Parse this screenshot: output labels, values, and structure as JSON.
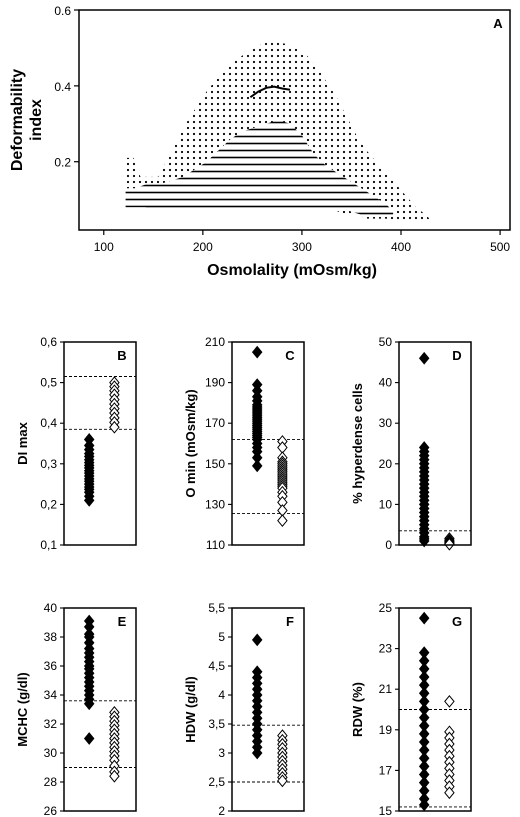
{
  "chart_data": [
    {
      "panel": "A",
      "type": "area",
      "xlabel": "Osmolality (mOsm/kg)",
      "ylabel_lines": [
        "Deformability",
        "index"
      ],
      "xlim": [
        75,
        510
      ],
      "ylim": [
        0.02,
        0.6
      ],
      "xticks": [
        100,
        200,
        300,
        400,
        500
      ],
      "yticks": [
        0.2,
        0.4,
        0.6
      ],
      "series": [
        {
          "style": "dotted",
          "x": [
            122,
            130,
            137,
            145,
            155,
            165,
            175,
            185,
            195,
            205,
            215,
            225,
            235,
            245,
            255,
            265,
            275,
            285,
            295,
            305,
            315,
            325,
            335,
            345,
            355,
            365,
            375,
            385,
            395,
            405,
            415,
            425,
            432
          ],
          "upper": [
            0.21,
            0.21,
            0.16,
            0.16,
            0.16,
            0.21,
            0.26,
            0.31,
            0.35,
            0.39,
            0.42,
            0.45,
            0.47,
            0.49,
            0.505,
            0.515,
            0.515,
            0.51,
            0.5,
            0.48,
            0.45,
            0.41,
            0.37,
            0.32,
            0.27,
            0.23,
            0.2,
            0.17,
            0.14,
            0.11,
            0.08,
            0.06,
            0.04
          ],
          "lower": [
            0.08,
            0.08,
            0.08,
            0.08,
            0.08,
            0.08,
            0.08,
            0.08,
            0.08,
            0.08,
            0.08,
            0.08,
            0.08,
            0.08,
            0.08,
            0.08,
            0.08,
            0.08,
            0.08,
            0.08,
            0.08,
            0.07,
            0.07,
            0.06,
            0.06,
            0.05,
            0.05,
            0.05,
            0.04,
            0.04,
            0.04,
            0.04,
            0.04
          ]
        },
        {
          "style": "hatched",
          "x": [
            122,
            132,
            142,
            155,
            168,
            180,
            192,
            204,
            216,
            228,
            240,
            252,
            264,
            276,
            288,
            300,
            312,
            324,
            336,
            348,
            360,
            372,
            384,
            392
          ],
          "upper": [
            0.13,
            0.13,
            0.14,
            0.14,
            0.15,
            0.16,
            0.18,
            0.2,
            0.23,
            0.26,
            0.28,
            0.29,
            0.3,
            0.31,
            0.3,
            0.27,
            0.22,
            0.19,
            0.17,
            0.15,
            0.13,
            0.11,
            0.09,
            0.07
          ],
          "lower": [
            0.08,
            0.08,
            0.08,
            0.07,
            0.07,
            0.07,
            0.07,
            0.07,
            0.07,
            0.07,
            0.07,
            0.07,
            0.07,
            0.07,
            0.07,
            0.07,
            0.07,
            0.07,
            0.07,
            0.07,
            0.06,
            0.06,
            0.06,
            0.06
          ]
        },
        {
          "style": "line",
          "x": [
            248,
            256,
            264,
            272,
            280,
            288
          ],
          "y": [
            0.37,
            0.385,
            0.395,
            0.398,
            0.393,
            0.39
          ]
        }
      ]
    },
    {
      "panel": "B",
      "type": "scatter",
      "ylabel": "DI max",
      "ylim": [
        0.1,
        0.6
      ],
      "yticks": [
        0.1,
        0.2,
        0.3,
        0.4,
        0.5,
        0.6
      ],
      "ytick_labels": [
        "0,1",
        "0,2",
        "0,3",
        "0,4",
        "0,5",
        "0,6"
      ],
      "reference_lines": [
        0.385,
        0.515
      ],
      "series": [
        {
          "marker": "filled-diamond",
          "values": [
            0.36,
            0.345,
            0.335,
            0.325,
            0.318,
            0.31,
            0.303,
            0.296,
            0.29,
            0.283,
            0.277,
            0.27,
            0.263,
            0.257,
            0.25,
            0.243,
            0.237,
            0.23,
            0.22,
            0.21
          ]
        },
        {
          "marker": "open-diamond",
          "values": [
            0.5,
            0.49,
            0.48,
            0.47,
            0.458,
            0.447,
            0.436,
            0.425,
            0.413,
            0.402,
            0.39
          ]
        }
      ]
    },
    {
      "panel": "C",
      "type": "scatter",
      "ylabel": "O min (mOsm/kg)",
      "ylim": [
        110,
        210
      ],
      "yticks": [
        110,
        130,
        150,
        170,
        190,
        210
      ],
      "reference_lines": [
        125.5,
        162
      ],
      "series": [
        {
          "marker": "filled-diamond",
          "values": [
            205,
            189,
            186,
            183,
            181,
            179,
            178,
            177,
            176,
            175,
            174,
            173,
            172,
            171,
            170,
            169,
            168,
            167,
            166,
            165,
            164,
            163,
            162,
            160,
            158,
            156,
            153,
            149
          ]
        },
        {
          "marker": "open-diamond",
          "values": [
            161,
            158,
            153,
            151,
            150,
            149,
            148,
            147,
            146,
            145,
            144,
            143,
            142,
            141,
            140,
            139,
            138,
            136,
            134,
            131,
            127,
            122
          ]
        }
      ]
    },
    {
      "panel": "D",
      "type": "scatter",
      "ylabel": "% hyperdense cells",
      "ylim": [
        0,
        50
      ],
      "yticks": [
        0,
        10,
        20,
        30,
        40,
        50
      ],
      "reference_lines": [
        3.5
      ],
      "series": [
        {
          "marker": "filled-diamond",
          "values": [
            46,
            24,
            23,
            22,
            21,
            20,
            19,
            18,
            17,
            16,
            15,
            14,
            13,
            12,
            11,
            10,
            9,
            8,
            7,
            6,
            5,
            4,
            3,
            2,
            1.5,
            1
          ]
        },
        {
          "marker": "open-diamond",
          "values": [
            1.6,
            1.2,
            0.9,
            0.6,
            0.4,
            0.2
          ]
        }
      ]
    },
    {
      "panel": "E",
      "type": "scatter",
      "ylabel": "MCHC (g/dl)",
      "ylim": [
        26,
        40
      ],
      "yticks": [
        26,
        28,
        30,
        32,
        34,
        36,
        38,
        40
      ],
      "reference_lines": [
        29,
        33.6
      ],
      "series": [
        {
          "marker": "filled-diamond",
          "values": [
            39.1,
            38.7,
            38.2,
            38,
            37.6,
            37.2,
            36.9,
            36.6,
            36.3,
            36,
            35.8,
            35.5,
            35.2,
            34.9,
            34.6,
            34.3,
            34,
            33.7,
            33.4,
            31
          ]
        },
        {
          "marker": "open-diamond",
          "values": [
            32.8,
            32.5,
            32.2,
            31.9,
            31.6,
            31.3,
            31,
            30.7,
            30.4,
            30.1,
            29.8,
            29.5,
            29.1,
            28.7,
            28.4
          ]
        }
      ]
    },
    {
      "panel": "F",
      "type": "scatter",
      "ylabel": "HDW (g/dl)",
      "ylim": [
        2,
        5.5
      ],
      "yticks": [
        2,
        2.5,
        3,
        3.5,
        4,
        4.5,
        5,
        5.5
      ],
      "ytick_labels": [
        "2",
        "2,5",
        "3",
        "3,5",
        "4",
        "4,5",
        "5",
        "5,5"
      ],
      "reference_lines": [
        2.5,
        3.48
      ],
      "series": [
        {
          "marker": "filled-diamond",
          "values": [
            4.95,
            4.4,
            4.3,
            4.2,
            4.1,
            4.0,
            3.9,
            3.8,
            3.7,
            3.6,
            3.5,
            3.4,
            3.3,
            3.2,
            3.1,
            3.0
          ]
        },
        {
          "marker": "open-diamond",
          "values": [
            3.3,
            3.22,
            3.15,
            3.08,
            3.0,
            2.93,
            2.86,
            2.79,
            2.72,
            2.65,
            2.58,
            2.52
          ]
        }
      ]
    },
    {
      "panel": "G",
      "type": "scatter",
      "ylabel": "RDW (%)",
      "ylim": [
        15,
        25
      ],
      "yticks": [
        15,
        17,
        19,
        21,
        23,
        25
      ],
      "reference_lines": [
        15.2,
        20
      ],
      "series": [
        {
          "marker": "filled-diamond",
          "values": [
            24.5,
            22.8,
            22.4,
            22,
            21.6,
            21.2,
            20.8,
            20.4,
            20,
            19.6,
            19.2,
            18.8,
            18.4,
            18,
            17.6,
            17.2,
            16.8,
            16.4,
            16,
            15.6,
            15.3
          ]
        },
        {
          "marker": "open-diamond",
          "values": [
            20.4,
            18.9,
            18.6,
            18.3,
            18,
            17.7,
            17.4,
            17.1,
            16.8,
            16.5,
            16.2,
            15.9
          ]
        }
      ]
    }
  ]
}
